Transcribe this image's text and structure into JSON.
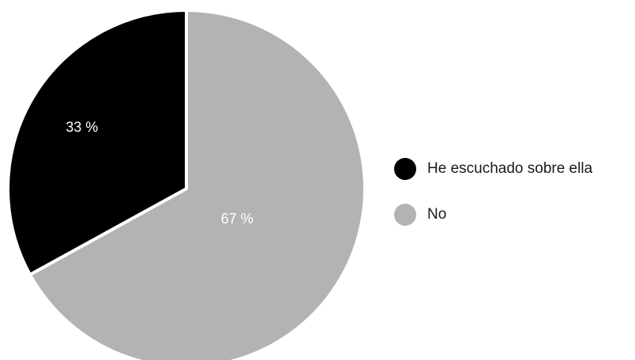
{
  "chart_data": {
    "type": "pie",
    "title": "",
    "categories": [
      "He escuchado sobre ella",
      "No"
    ],
    "values": [
      33,
      67
    ],
    "labels": [
      "33 %",
      "67 %"
    ],
    "colors": [
      "#000000",
      "#b3b3b3"
    ],
    "label_colors": [
      "#ffffff",
      "#ffffff"
    ],
    "legend_position": "right",
    "start_angle": "12 o'clock, clockwise: No first, then He escuchado sobre ella"
  },
  "legend": {
    "items": [
      {
        "label": "He escuchado sobre ella",
        "color": "#000000"
      },
      {
        "label": "No",
        "color": "#b3b3b3"
      }
    ]
  }
}
